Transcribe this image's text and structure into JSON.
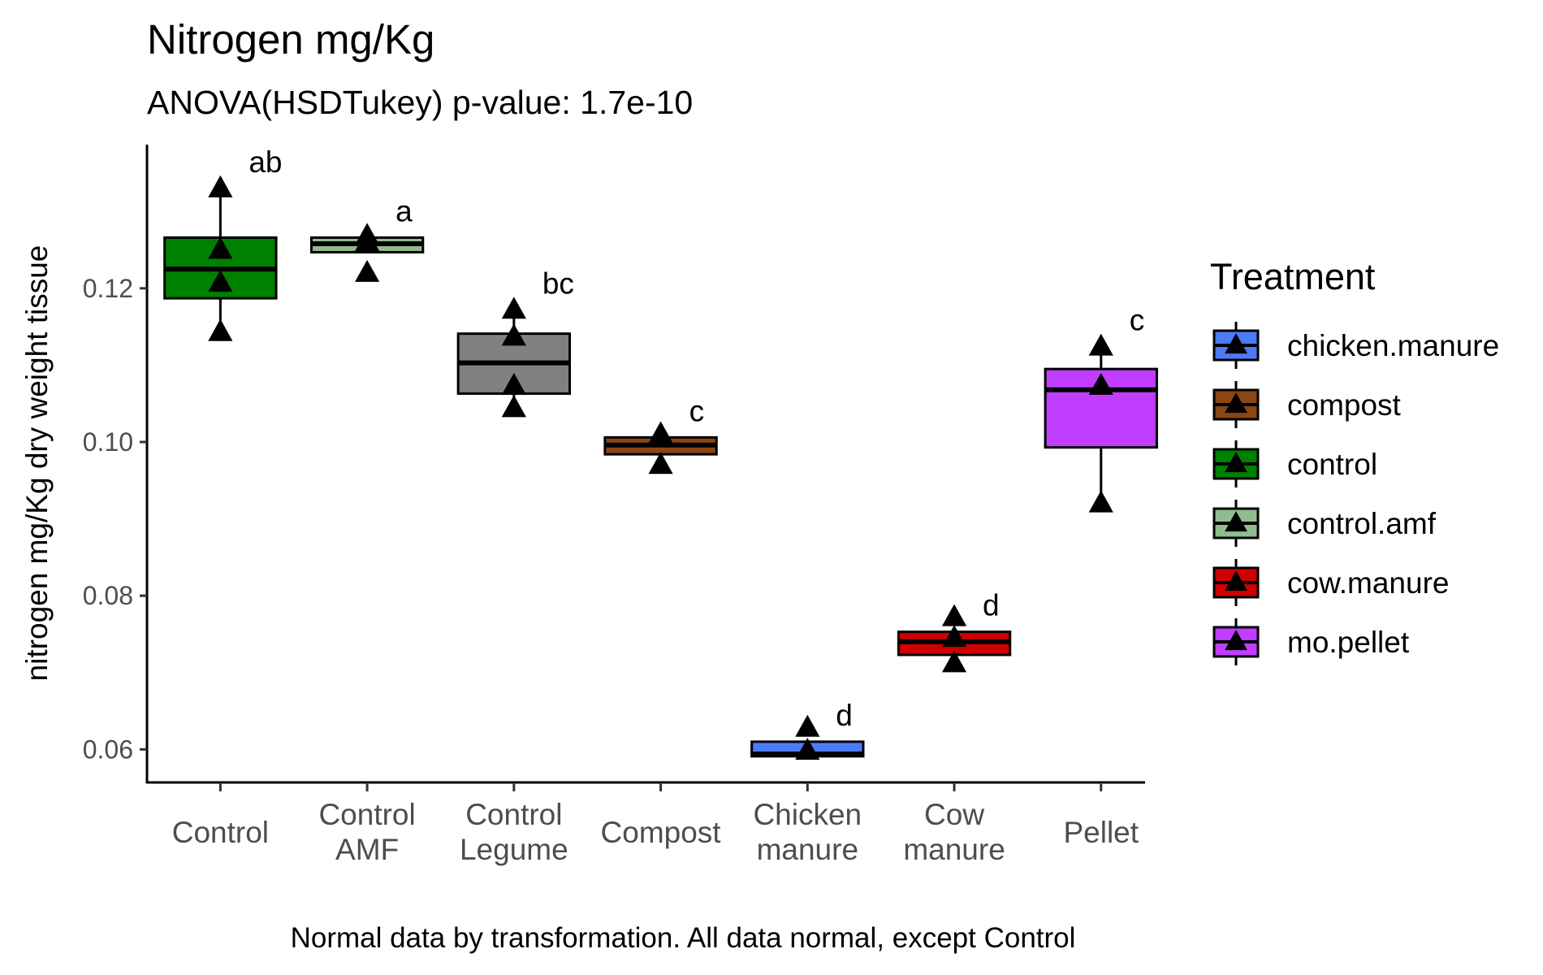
{
  "chart_data": {
    "type": "box",
    "title": "Nitrogen mg/Kg",
    "subtitle": "ANOVA(HSDTukey) p-value: 1.7e-10",
    "caption": "Normal data by transformation. All data normal, except Control",
    "ylabel": "nitrogen mg/Kg dry weight tissue",
    "xlabel": "",
    "ylim": [
      0.0557,
      0.1387
    ],
    "yticks": [
      0.06,
      0.08,
      0.1,
      0.12
    ],
    "ytick_labels": [
      "0.06",
      "0.08",
      "0.10",
      "0.12"
    ],
    "grid": false,
    "legend_title": "Treatment",
    "legend_position": "right",
    "legend": [
      {
        "name": "chicken.manure",
        "color": "#4D7BF7"
      },
      {
        "name": "compost",
        "color": "#8B4513"
      },
      {
        "name": "control",
        "color": "#008000"
      },
      {
        "name": "control.amf",
        "color": "#8FBC8F"
      },
      {
        "name": "cow.manure",
        "color": "#D00000"
      },
      {
        "name": "mo.pellet",
        "color": "#BF3EFF"
      }
    ],
    "categories": [
      {
        "label": [
          "Control"
        ],
        "letter": "ab",
        "color": "#008000",
        "whisker_low": 0.1143,
        "q1": 0.1187,
        "median": 0.1225,
        "q3": 0.1266,
        "whisker_high": 0.133,
        "points": [
          0.133,
          0.125,
          0.1207,
          0.1143
        ]
      },
      {
        "label": [
          "Control",
          "AMF"
        ],
        "letter": "a",
        "color": "#8FBC8F",
        "whisker_low": 0.1247,
        "q1": 0.1247,
        "median": 0.1258,
        "q3": 0.1266,
        "whisker_high": 0.1266,
        "points": [
          0.1268,
          0.126,
          0.122
        ]
      },
      {
        "label": [
          "Control",
          "Legume"
        ],
        "letter": "bc",
        "color": "#808080",
        "whisker_low": 0.1044,
        "q1": 0.1063,
        "median": 0.1103,
        "q3": 0.1141,
        "whisker_high": 0.1172,
        "points": [
          0.1172,
          0.1137,
          0.1073,
          0.1044
        ]
      },
      {
        "label": [
          "Compost"
        ],
        "letter": "c",
        "color": "#8B4513",
        "whisker_low": 0.0984,
        "q1": 0.0984,
        "median": 0.0996,
        "q3": 0.1006,
        "whisker_high": 0.1006,
        "points": [
          0.101,
          0.097
        ]
      },
      {
        "label": [
          "Chicken",
          "manure"
        ],
        "letter": "d",
        "color": "#4D7BF7",
        "whisker_low": 0.0591,
        "q1": 0.0591,
        "median": 0.0594,
        "q3": 0.061,
        "whisker_high": 0.061,
        "points": [
          0.0628,
          0.0598
        ]
      },
      {
        "label": [
          "Cow",
          "manure"
        ],
        "letter": "d",
        "color": "#D00000",
        "whisker_low": 0.0723,
        "q1": 0.0723,
        "median": 0.074,
        "q3": 0.0753,
        "whisker_high": 0.0753,
        "points": [
          0.0772,
          0.0745,
          0.0712
        ]
      },
      {
        "label": [
          "Pellet"
        ],
        "letter": "c",
        "color": "#BF3EFF",
        "whisker_low": 0.092,
        "q1": 0.0993,
        "median": 0.1068,
        "q3": 0.1095,
        "whisker_high": 0.1124,
        "points": [
          0.1124,
          0.1073,
          0.092
        ]
      }
    ]
  }
}
